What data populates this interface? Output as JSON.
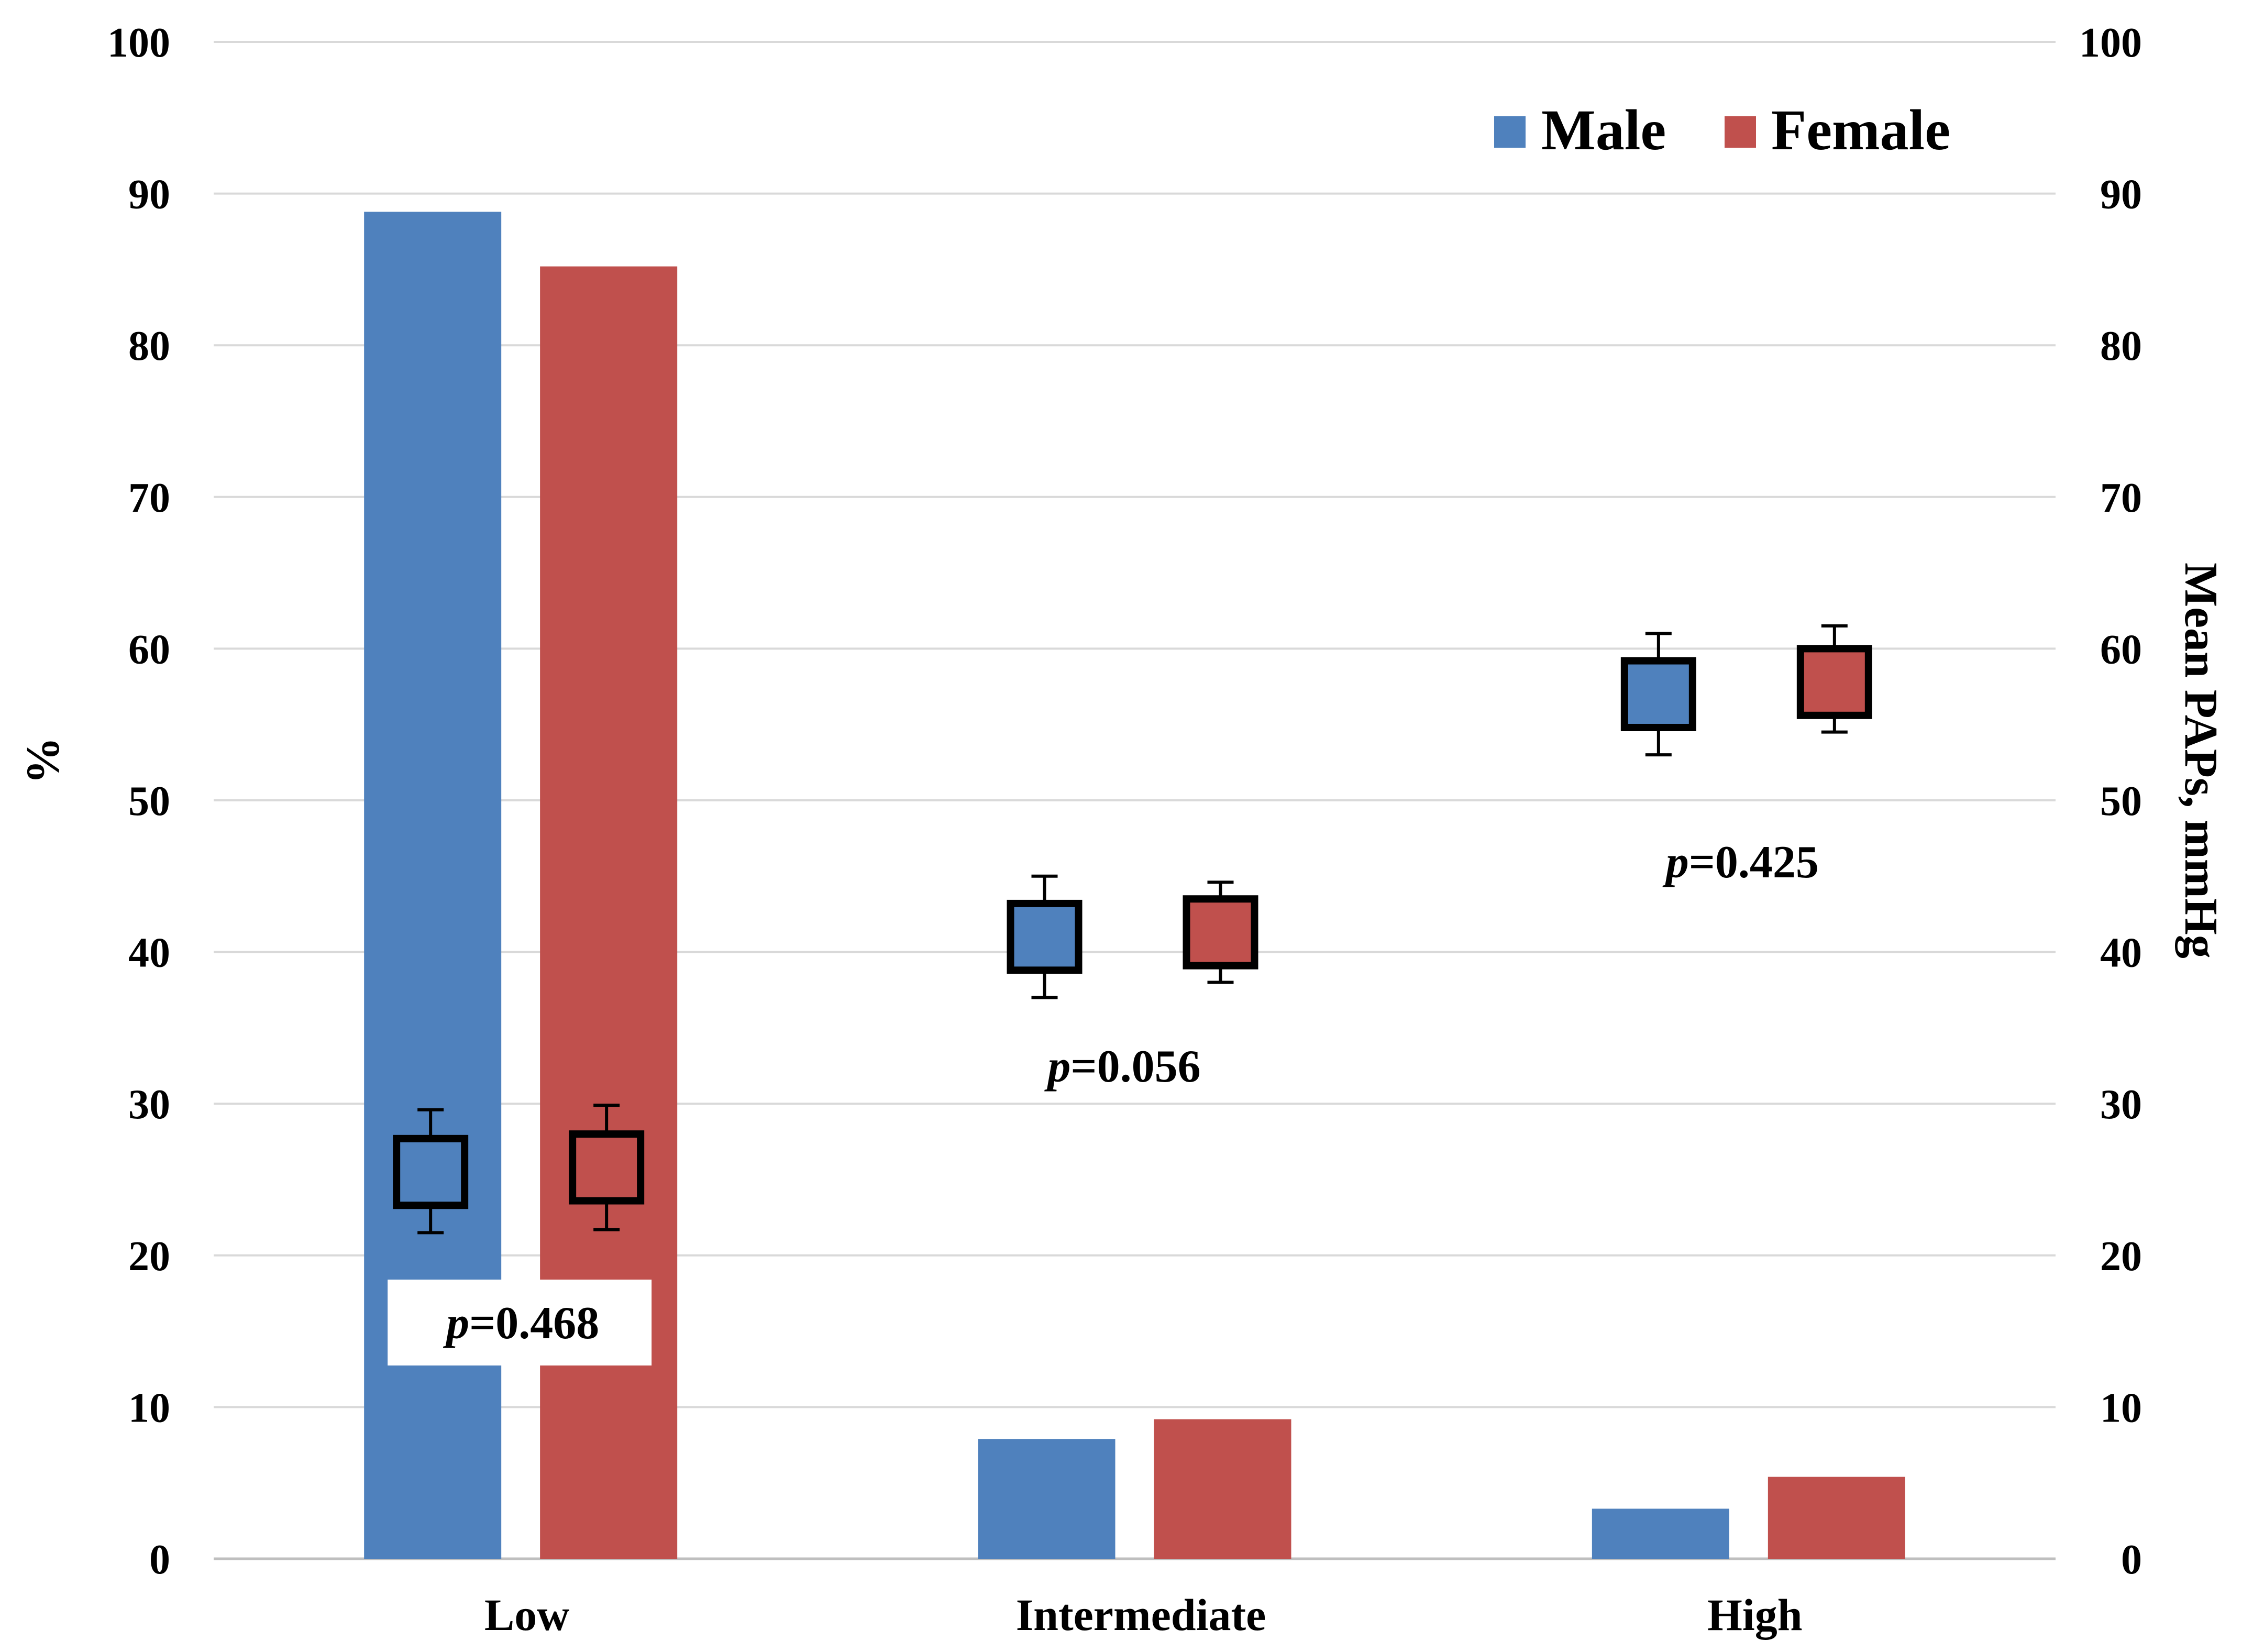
{
  "chart_data": {
    "type": "bar",
    "categories": [
      "Low",
      "Intermediate",
      "High"
    ],
    "series": [
      {
        "name": "Male",
        "color": "#4F81BD",
        "values": [
          88.8,
          7.9,
          3.3
        ]
      },
      {
        "name": "Female",
        "color": "#C0504D",
        "values": [
          85.2,
          9.2,
          5.4
        ]
      }
    ],
    "secondary_series": [
      {
        "name": "Male",
        "color": "#4F81BD",
        "mean": [
          25.5,
          41.0,
          57.0
        ],
        "low": [
          21.5,
          37.0,
          53.0
        ],
        "high": [
          29.6,
          45.0,
          61.0
        ]
      },
      {
        "name": "Female",
        "color": "#C0504D",
        "mean": [
          25.8,
          41.3,
          57.8
        ],
        "low": [
          21.7,
          38.0,
          54.5
        ],
        "high": [
          29.9,
          44.6,
          61.5
        ]
      }
    ],
    "p_values": [
      {
        "prefix": "p",
        "value": "=0.468"
      },
      {
        "prefix": "p",
        "value": "=0.056"
      },
      {
        "prefix": "p",
        "value": "=0.425"
      }
    ],
    "ylabel": "%",
    "y2label": "Mean PAPs, mmHg",
    "ylim": [
      0,
      100
    ],
    "y2lim": [
      0,
      100
    ],
    "yticks": [
      "0",
      "10",
      "20",
      "30",
      "40",
      "50",
      "60",
      "70",
      "80",
      "90",
      "100"
    ],
    "y2ticks": [
      "0",
      "10",
      "20",
      "30",
      "40",
      "50",
      "60",
      "70",
      "80",
      "90",
      "100"
    ],
    "legend": [
      "Male",
      "Female"
    ],
    "legend_position": "top-right",
    "grid": true
  }
}
